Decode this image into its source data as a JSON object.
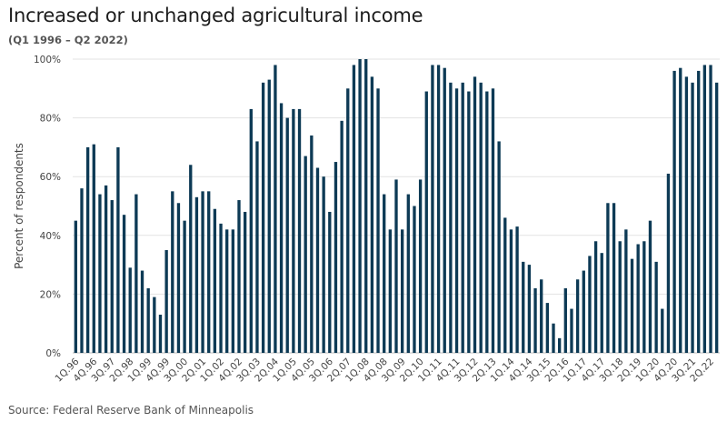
{
  "chart_data": {
    "type": "bar",
    "title": "Increased or unchanged agricultural income",
    "subtitle": "(Q1 1996 – Q2 2022)",
    "ylabel": "Percent of respondents",
    "xlabel": "",
    "ylim": [
      0,
      100
    ],
    "yticks": [
      "0%",
      "20%",
      "40%",
      "60%",
      "80%",
      "100%"
    ],
    "grid": true,
    "bar_color": "#0d3a55",
    "xtick_labels": [
      "1Q.96",
      "4Q.96",
      "3Q.97",
      "2Q.98",
      "1Q.99",
      "4Q.99",
      "3Q.00",
      "2Q.01",
      "1Q.02",
      "4Q.02",
      "3Q.03",
      "2Q.04",
      "1Q.05",
      "4Q.05",
      "3Q.06",
      "2Q.07",
      "1Q.08",
      "4Q.08",
      "3Q.09",
      "2Q.10",
      "1Q.11",
      "4Q.11",
      "3Q.12",
      "2Q.13",
      "1Q.14",
      "4Q.14",
      "3Q.15",
      "2Q.16",
      "1Q.17",
      "4Q.17",
      "3Q.18",
      "2Q.19",
      "1Q.20",
      "4Q.20",
      "3Q.21",
      "2Q.22"
    ],
    "xtick_every": 3,
    "values": [
      45,
      56,
      70,
      71,
      54,
      57,
      52,
      70,
      47,
      29,
      54,
      28,
      22,
      19,
      13,
      35,
      55,
      51,
      45,
      64,
      53,
      55,
      55,
      49,
      44,
      42,
      42,
      52,
      48,
      83,
      72,
      92,
      93,
      98,
      85,
      80,
      83,
      83,
      67,
      74,
      63,
      60,
      48,
      65,
      79,
      90,
      98,
      100,
      100,
      94,
      90,
      54,
      42,
      59,
      42,
      54,
      50,
      59,
      89,
      98,
      98,
      97,
      92,
      90,
      92,
      89,
      94,
      92,
      89,
      90,
      72,
      46,
      42,
      43,
      31,
      30,
      22,
      25,
      17,
      10,
      5,
      22,
      15,
      25,
      28,
      33,
      38,
      34,
      51,
      51,
      38,
      42,
      32,
      37,
      38,
      45,
      31,
      15,
      61,
      96,
      97,
      94,
      92,
      96,
      98,
      98,
      92
    ]
  },
  "source": "Source: Federal Reserve Bank of Minneapolis"
}
